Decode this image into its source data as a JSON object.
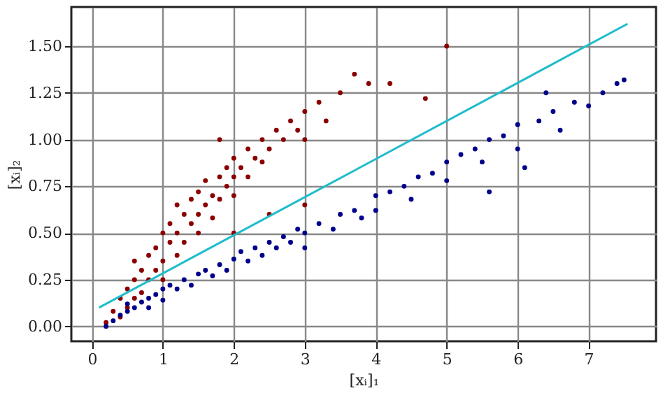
{
  "chart_data": {
    "type": "scatter",
    "xlabel": "[xᵢ]₁",
    "ylabel": "[xᵢ]₂",
    "xlim": [
      -0.29,
      7.95
    ],
    "ylim": [
      -0.08,
      1.71
    ],
    "xticks": [
      0,
      1,
      2,
      3,
      4,
      5,
      6,
      7
    ],
    "yticks": [
      {
        "value": 0,
        "label": "0.00"
      },
      0.25,
      {
        "value": 0.5,
        "label": "0.50"
      },
      0.75,
      {
        "value": 1,
        "label": "1.00"
      },
      1.25,
      {
        "value": 1.5,
        "label": "1.50"
      }
    ],
    "grid": true,
    "marker": "circle",
    "series": [
      {
        "color": "#8b0000",
        "x": [
          0.2,
          0.3,
          0.4,
          0.4,
          0.5,
          0.5,
          0.6,
          0.6,
          0.7,
          0.7,
          0.8,
          0.8,
          0.9,
          0.9,
          1.0,
          1.0,
          1.0,
          1.1,
          1.1,
          1.2,
          1.2,
          1.3,
          1.3,
          1.4,
          1.4,
          1.5,
          1.5,
          1.5,
          1.6,
          1.6,
          1.7,
          1.7,
          1.8,
          1.8,
          1.9,
          1.9,
          2.0,
          2.0,
          2.0,
          2.1,
          2.2,
          2.2,
          2.3,
          2.4,
          2.4,
          2.5,
          2.6,
          2.7,
          2.8,
          2.9,
          3.0,
          3.0,
          3.2,
          3.3,
          3.5,
          3.7,
          3.9,
          4.2,
          4.7,
          5.0,
          2.0,
          2.5,
          3.0,
          1.8,
          1.2,
          0.6
        ],
        "values": [
          0.02,
          0.08,
          0.15,
          0.05,
          0.2,
          0.1,
          0.25,
          0.15,
          0.3,
          0.18,
          0.38,
          0.25,
          0.42,
          0.3,
          0.5,
          0.35,
          0.25,
          0.45,
          0.55,
          0.5,
          0.38,
          0.6,
          0.45,
          0.55,
          0.68,
          0.6,
          0.72,
          0.5,
          0.65,
          0.78,
          0.7,
          0.58,
          0.8,
          0.68,
          0.75,
          0.85,
          0.8,
          0.7,
          0.9,
          0.85,
          0.95,
          0.8,
          0.9,
          1.0,
          0.88,
          0.95,
          1.05,
          1.0,
          1.1,
          1.05,
          1.15,
          1.0,
          1.2,
          1.1,
          1.25,
          1.35,
          1.3,
          1.3,
          1.22,
          1.5,
          0.5,
          0.6,
          0.65,
          1.0,
          0.65,
          0.35
        ]
      },
      {
        "color": "#00008b",
        "x": [
          0.2,
          0.3,
          0.4,
          0.5,
          0.5,
          0.6,
          0.7,
          0.8,
          0.8,
          0.9,
          1.0,
          1.0,
          1.1,
          1.2,
          1.3,
          1.4,
          1.5,
          1.6,
          1.7,
          1.8,
          1.9,
          2.0,
          2.1,
          2.2,
          2.3,
          2.4,
          2.5,
          2.6,
          2.7,
          2.8,
          2.9,
          3.0,
          3.0,
          3.2,
          3.4,
          3.5,
          3.7,
          3.8,
          4.0,
          4.0,
          4.2,
          4.4,
          4.5,
          4.6,
          4.8,
          5.0,
          5.0,
          5.2,
          5.4,
          5.5,
          5.6,
          5.8,
          6.0,
          6.0,
          6.1,
          6.3,
          6.5,
          6.6,
          6.8,
          7.0,
          7.2,
          7.4,
          7.5,
          6.4,
          5.6
        ],
        "values": [
          0.0,
          0.03,
          0.06,
          0.08,
          0.12,
          0.1,
          0.13,
          0.15,
          0.1,
          0.17,
          0.2,
          0.14,
          0.22,
          0.2,
          0.25,
          0.22,
          0.28,
          0.3,
          0.27,
          0.33,
          0.3,
          0.36,
          0.4,
          0.35,
          0.42,
          0.38,
          0.45,
          0.42,
          0.48,
          0.45,
          0.52,
          0.5,
          0.42,
          0.55,
          0.52,
          0.6,
          0.62,
          0.58,
          0.7,
          0.62,
          0.72,
          0.75,
          0.68,
          0.8,
          0.82,
          0.88,
          0.78,
          0.92,
          0.95,
          0.88,
          1.0,
          1.02,
          1.08,
          0.95,
          0.85,
          1.1,
          1.15,
          1.05,
          1.2,
          1.18,
          1.25,
          1.3,
          1.32,
          1.25,
          0.72
        ]
      },
      {
        "type": "line",
        "marker": "none",
        "color": "#1fbccc",
        "x": [
          0.1,
          7.55
        ],
        "values": [
          0.1,
          1.62
        ]
      }
    ]
  }
}
